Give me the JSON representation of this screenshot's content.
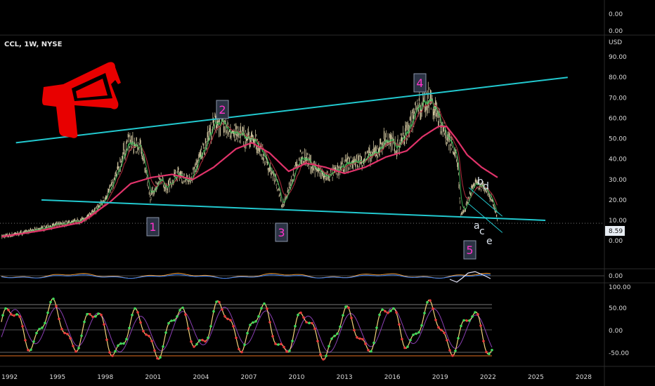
{
  "header": {
    "ticker": "CCL, 1W, NYSE",
    "currency": "USD"
  },
  "panes": {
    "top_ticks": [
      "0.00",
      "0.00"
    ],
    "macd_tick": "0.00",
    "stoch_ticks": [
      "100.00",
      "50.00",
      "0.00",
      "-50.00"
    ]
  },
  "colors": {
    "price_up": "#e8dcb0",
    "ema_fast": "#3fbf5a",
    "ema_mid": "#a62a3a",
    "ma_slow": "#e0336a",
    "trendline": "#22c9cf",
    "wave_label": "#ff33cc",
    "sub_label": "#dfe6f0",
    "box_bg": "#2b3344",
    "box_border": "#8a93a8",
    "badge_bg": "#e8edf3",
    "megaphone": "#e80000"
  },
  "annotations": {
    "waves": [
      "1",
      "2",
      "3",
      "4",
      "5"
    ],
    "sub_waves": [
      "a",
      "b",
      "c",
      "d",
      "e"
    ],
    "icons": [
      "megaphone-icon"
    ]
  },
  "chart_data": {
    "type": "line",
    "title": "CCL, 1W, NYSE",
    "ylabel": "USD",
    "ylim": [
      -12,
      100
    ],
    "yticks": [
      0,
      10,
      20,
      30,
      40,
      50,
      60,
      70,
      80,
      90
    ],
    "ytick_labels": [
      "0.00",
      "10.00",
      "20.00",
      "30.00",
      "40.00",
      "50.00",
      "60.00",
      "70.00",
      "80.00",
      "90.00"
    ],
    "xlim": [
      1991.4,
      2029.3
    ],
    "xticks": [
      1992,
      1995,
      1998,
      2001,
      2004,
      2007,
      2010,
      2013,
      2016,
      2019,
      2022,
      2025,
      2028
    ],
    "last_price": "8.59",
    "series": [
      {
        "key": "price",
        "x": [
          1991.5,
          1992.5,
          1993.5,
          1994.5,
          1995.5,
          1996.5,
          1997.3,
          1997.9,
          1998.5,
          1999.4,
          2000.3,
          2000.8,
          2001.5,
          2001.8,
          2002.5,
          2003.3,
          2004.0,
          2004.5,
          2005.0,
          2005.6,
          2006.3,
          2007.0,
          2007.6,
          2008.3,
          2008.8,
          2009.1,
          2009.6,
          2010.3,
          2011.1,
          2011.8,
          2012.5,
          2013.2,
          2014.0,
          2015.0,
          2015.6,
          2016.3,
          2017.0,
          2017.5,
          2017.9,
          2018.3,
          2018.8,
          2019.3,
          2019.9,
          2020.1,
          2020.3,
          2020.6,
          2021.1,
          2021.6,
          2022.0,
          2022.3,
          2022.6
        ],
        "values": [
          2,
          3.5,
          5,
          7,
          8.5,
          10,
          14,
          20,
          28,
          48,
          45,
          21,
          32,
          25,
          33,
          29,
          42,
          52,
          59,
          55,
          52,
          50,
          47,
          36,
          27,
          17,
          28,
          42,
          36,
          31,
          34,
          38,
          39,
          43,
          50,
          46,
          55,
          64,
          67,
          70,
          63,
          53,
          45,
          38,
          12,
          16,
          28,
          26,
          24,
          19,
          11
        ]
      },
      {
        "key": "ma_slow",
        "x": [
          1991.5,
          1994.0,
          1996.5,
          1998.3,
          1999.6,
          2000.9,
          2002.2,
          2003.5,
          2004.8,
          2006.2,
          2007.2,
          2008.3,
          2009.5,
          2010.6,
          2011.8,
          2013.0,
          2014.3,
          2015.6,
          2016.9,
          2017.9,
          2018.9,
          2019.4,
          2020.0,
          2020.7,
          2021.6,
          2022.6
        ],
        "values": [
          2,
          5,
          9,
          19,
          28,
          31,
          32.5,
          30,
          36,
          45,
          48,
          43,
          34,
          38,
          36,
          33,
          36,
          41,
          44,
          51,
          56,
          56,
          50,
          42,
          36,
          31
        ]
      },
      {
        "key": "sub_trend_upper",
        "x": [
          2020.8,
          2022.9
        ],
        "values": [
          26,
          12
        ]
      },
      {
        "key": "sub_trend_lower",
        "x": [
          2020.8,
          2022.9
        ],
        "values": [
          18,
          4
        ]
      }
    ],
    "trendlines": [
      {
        "name": "upper",
        "x": [
          1992.4,
          2027.0
        ],
        "values": [
          48,
          80
        ]
      },
      {
        "name": "lower",
        "x": [
          1994.0,
          2025.6
        ],
        "values": [
          20,
          10
        ]
      }
    ]
  }
}
